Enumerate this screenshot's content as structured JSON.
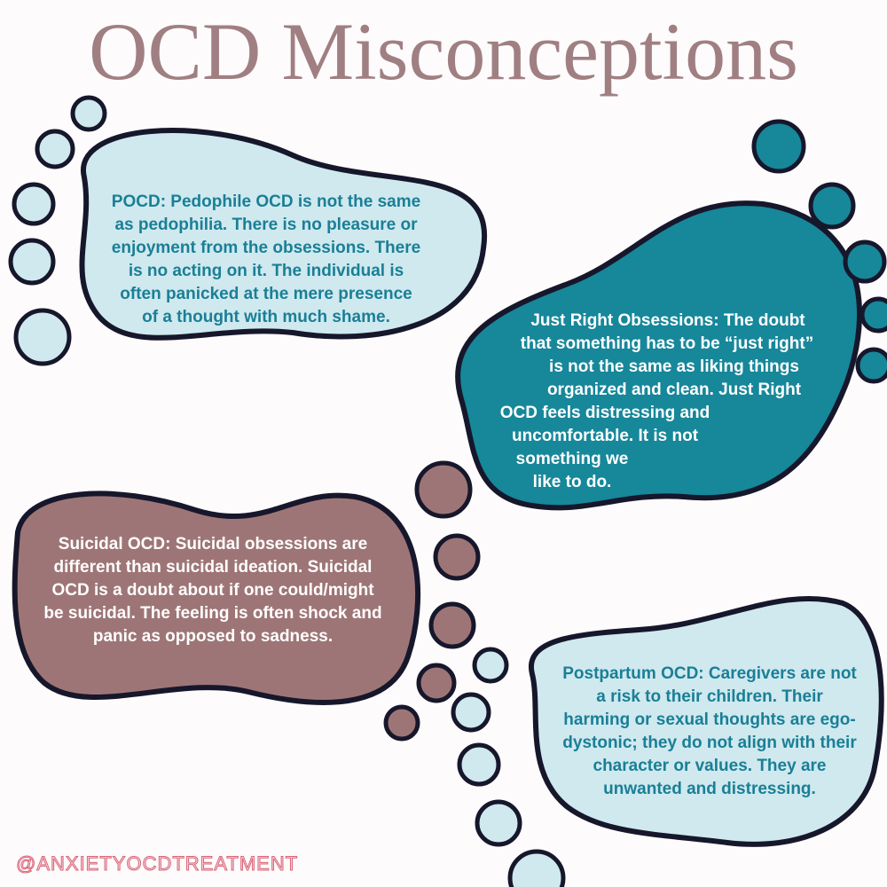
{
  "title": "OCD Misconceptions",
  "footprints": [
    {
      "lines": [
        "POCD: Pedophile OCD is not the same",
        "as pedophilia. There is no pleasure or",
        "enjoyment from the obsessions. There",
        "is no acting on it. The individual is",
        "often panicked at the mere presence",
        "of a thought with much shame."
      ]
    },
    {
      "lines": [
        "Just Right Obsessions: The doubt",
        "that something has to be “just right”",
        "is not the same as liking things",
        "organized and clean. Just Right",
        "OCD feels distressing and",
        "uncomfortable. It is not",
        "something we",
        "like to do."
      ]
    },
    {
      "lines": [
        "Suicidal OCD: Suicidal obsessions are",
        "different than suicidal ideation.  Suicidal",
        "OCD is a doubt about if one could/might",
        "be suicidal.  The feeling is often shock and",
        "panic as opposed to sadness."
      ]
    },
    {
      "lines": [
        "Postpartum OCD: Caregivers are not",
        "a risk to their children.  Their",
        "harming or sexual thoughts are ego-",
        "dystonic; they do not align with their",
        "character or values. They are",
        "unwanted and distressing."
      ]
    }
  ],
  "handle": "@ANXIETYOCDTREATMENT"
}
